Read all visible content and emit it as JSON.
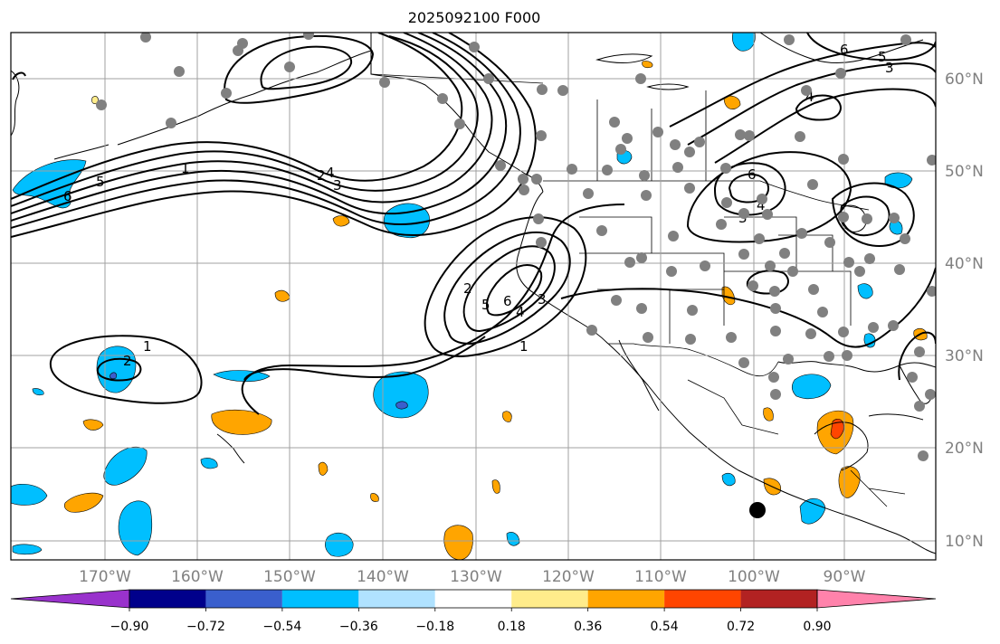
{
  "title": "2025092100 F000",
  "lon_labels": [
    "170°W",
    "160°W",
    "150°W",
    "140°W",
    "130°W",
    "120°W",
    "110°W",
    "100°W",
    "90°W"
  ],
  "lat_labels": [
    "60°N",
    "50°N",
    "40°N",
    "30°N",
    "20°N",
    "10°N"
  ],
  "colorbar": {
    "tick_labels": [
      "−0.90",
      "−0.72",
      "−0.54",
      "−0.36",
      "−0.18",
      "0.18",
      "0.36",
      "0.54",
      "0.72",
      "0.90"
    ],
    "colors": [
      "#9932cc",
      "#00008b",
      "#3a5fcd",
      "#00bfff",
      "#b0e2ff",
      "#ffffff",
      "#ffec8b",
      "#ffa500",
      "#ff4500",
      "#b22222",
      "#ff82ab"
    ]
  },
  "contour_labels": [
    "1",
    "2",
    "3",
    "4",
    "5",
    "6",
    "1",
    "2",
    "3",
    "4",
    "5",
    "6",
    "1",
    "2",
    "3",
    "4",
    "5",
    "6",
    "4",
    "3",
    "6"
  ],
  "colors": {
    "contour": "#000000",
    "station": "#808080",
    "grid": "#a0a0a0",
    "coast": "#000000"
  }
}
